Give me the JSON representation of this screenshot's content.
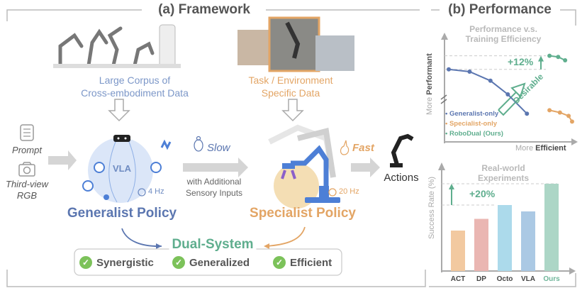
{
  "framework": {
    "title": "(a) Framework",
    "corpus_label": [
      "Large Corpus of",
      "Cross-embodiment Data"
    ],
    "task_label": [
      "Task / Environment",
      "Specific Data"
    ],
    "inputs": {
      "prompt": "Prompt",
      "rgb": [
        "Third-view",
        "RGB"
      ]
    },
    "vla_label": "VLA",
    "generalist_freq": "4 Hz",
    "specialist_freq": "20 Hz",
    "slow_label": "Slow",
    "fast_label": "Fast",
    "sensory_label": [
      "with Additional",
      "Sensory Inputs"
    ],
    "actions_label": "Actions",
    "generalist_policy": "Generalist Policy",
    "specialist_policy": "Specialist Policy",
    "dual_system": "Dual-System",
    "features": [
      "Synergistic",
      "Generalized",
      "Efficient"
    ],
    "colors": {
      "generalist": "#5b76b0",
      "specialist": "#e3a565",
      "dual": "#5fae8e",
      "check": "#7cc25a"
    }
  },
  "performance": {
    "title": "(b) Performance"
  },
  "chart_data": [
    {
      "type": "line",
      "title": "Performance v.s. Training Efficiency",
      "xlabel": [
        "More",
        "Efficient"
      ],
      "ylabel": [
        "More",
        "Performant"
      ],
      "annotation": "+12%",
      "arrow_label": "Desirable",
      "legend_position": "bottom-left",
      "series": [
        {
          "name": "Generalist-only",
          "color": "#5b76b0",
          "x": [
            0,
            12,
            24,
            34,
            45
          ],
          "y": [
            72,
            70,
            62,
            50,
            33
          ]
        },
        {
          "name": "Specialist-only",
          "color": "#e3a565",
          "x": [
            58,
            64,
            69,
            71
          ],
          "y": [
            36,
            34,
            31,
            26
          ]
        },
        {
          "name": "RoboDual (Ours)",
          "color": "#5fae8e",
          "x": [
            58,
            63,
            67
          ],
          "y": [
            84,
            83,
            80
          ]
        }
      ]
    },
    {
      "type": "bar",
      "title": "Real-world Experiments",
      "ylabel": "Success Rate (%)",
      "categories": [
        "ACT",
        "DP",
        "Octo",
        "VLA",
        "Ours"
      ],
      "values": [
        38,
        49,
        62,
        56,
        82
      ],
      "colors": [
        "#f2c9a0",
        "#eab6b2",
        "#acdaeb",
        "#abc9e4",
        "#acd6c6"
      ],
      "annotation": "+20%",
      "ylim": [
        0,
        100
      ]
    }
  ]
}
